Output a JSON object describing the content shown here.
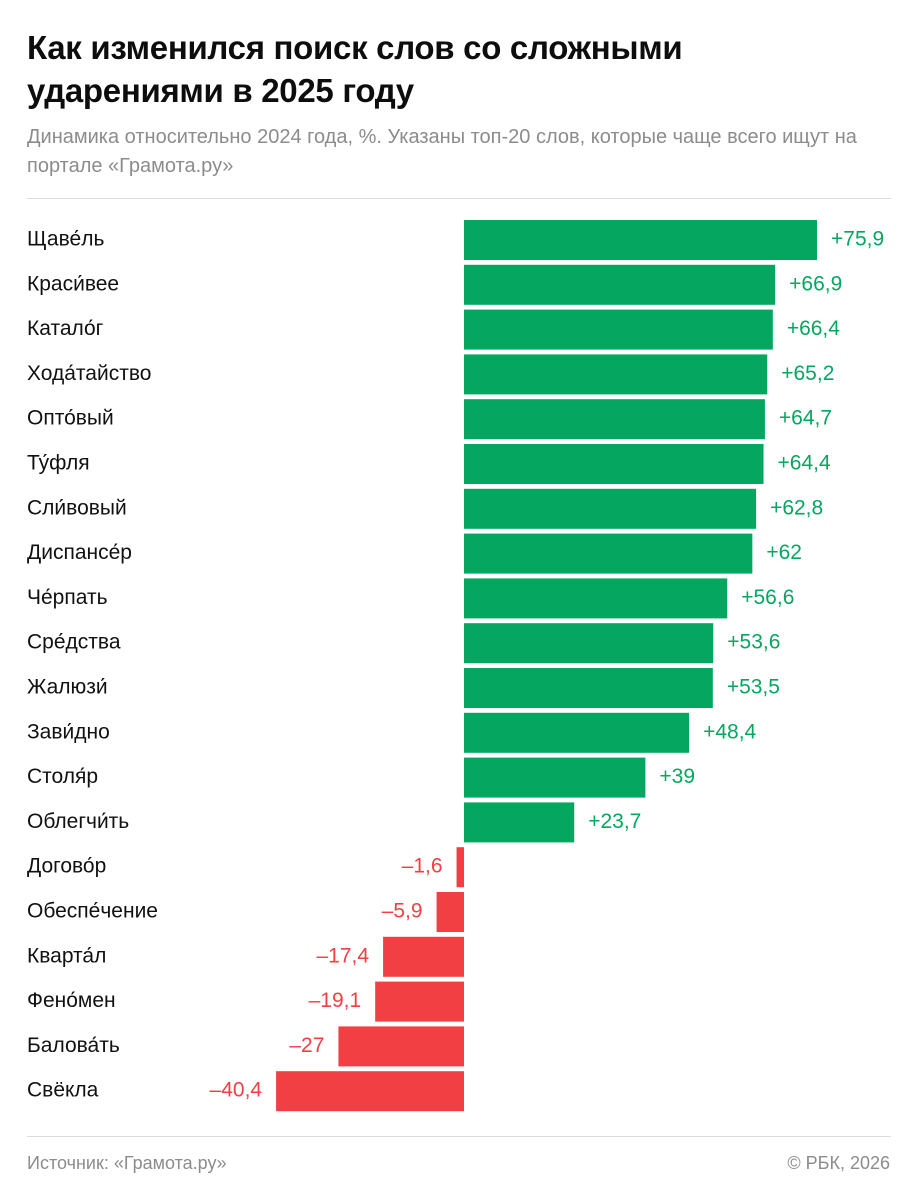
{
  "header": {
    "title": "Как изменился поиск слов со сложными ударениями в 2025 году",
    "subtitle": "Динамика относительно 2024 года, %. Указаны топ-20 слов, которые чаще всего ищут на портале «Грамота.ру»"
  },
  "footer": {
    "source": "Источник: «Грамота.ру»",
    "copyright": "© РБК, 2026"
  },
  "colors": {
    "positive": "#05a660",
    "negative": "#f23f44",
    "label": "#111111"
  },
  "chart_data": {
    "type": "bar",
    "orientation": "horizontal",
    "title": "Как изменился поиск слов со сложными ударениями в 2025 году",
    "subtitle": "Динамика относительно 2024 года, %. Указаны топ-20 слов, которые чаще всего ищут на портале «Грамота.ру»",
    "categories": [
      "Щаве́ль",
      "Краси́вее",
      "Катало́г",
      "Хода́тайство",
      "Опто́вый",
      "Ту́фля",
      "Сли́вовый",
      "Диспансе́р",
      "Че́рпать",
      "Сре́дства",
      "Жалюзи́",
      "Зави́дно",
      "Столя́р",
      "Облегчи́ть",
      "Догово́р",
      "Обеспе́чение",
      "Кварта́л",
      "Фено́мен",
      "Балова́ть",
      "Свёкла"
    ],
    "values": [
      75.9,
      66.9,
      66.4,
      65.2,
      64.7,
      64.4,
      62.8,
      62,
      56.6,
      53.6,
      53.5,
      48.4,
      39,
      23.7,
      -1.6,
      -5.9,
      -17.4,
      -19.1,
      -27,
      -40.4
    ],
    "value_labels": [
      "+75,9",
      "+66,9",
      "+66,4",
      "+65,2",
      "+64,7",
      "+64,4",
      "+62,8",
      "+62",
      "+56,6",
      "+53,6",
      "+53,5",
      "+48,4",
      "+39",
      "+23,7",
      "–1,6",
      "–5,9",
      "–17,4",
      "–19,1",
      "–27",
      "–40,4"
    ],
    "xlim": [
      -40.4,
      75.9
    ],
    "grid": false,
    "legend": "none"
  }
}
